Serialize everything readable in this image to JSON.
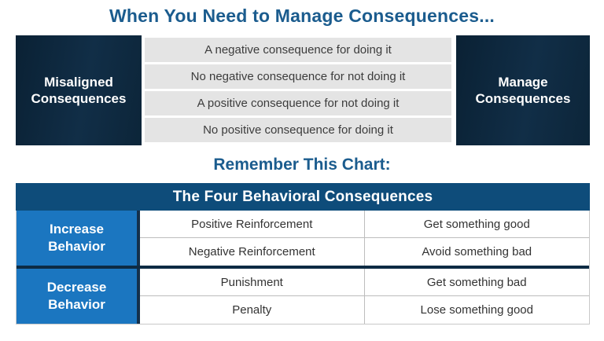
{
  "titles": {
    "main": "When You Need to Manage Consequences...",
    "secondary": "Remember This Chart:"
  },
  "top_table": {
    "left_label": "Misaligned Consequences",
    "right_label": "Manage Consequences",
    "rows": [
      "A negative consequence for doing it",
      "No negative consequence for not doing it",
      "A positive consequence for not doing it",
      "No positive consequence for doing it"
    ]
  },
  "bottom_table": {
    "header": "The Four Behavioral Consequences",
    "groups": [
      {
        "label": "Increase Behavior",
        "rows": [
          {
            "name": "Positive Reinforcement",
            "effect": "Get something good"
          },
          {
            "name": "Negative Reinforcement",
            "effect": "Avoid something bad"
          }
        ]
      },
      {
        "label": "Decrease Behavior",
        "rows": [
          {
            "name": "Punishment",
            "effect": "Get something bad"
          },
          {
            "name": "Penalty",
            "effect": "Lose something good"
          }
        ]
      }
    ]
  },
  "colors": {
    "title_blue": "#1b5c8e",
    "dark_navy_box": "#0d2a40",
    "header_navy": "#0e4c7a",
    "bright_blue": "#1b76c0",
    "row_gray": "#e4e4e4",
    "divider_navy": "#0d2b44"
  }
}
